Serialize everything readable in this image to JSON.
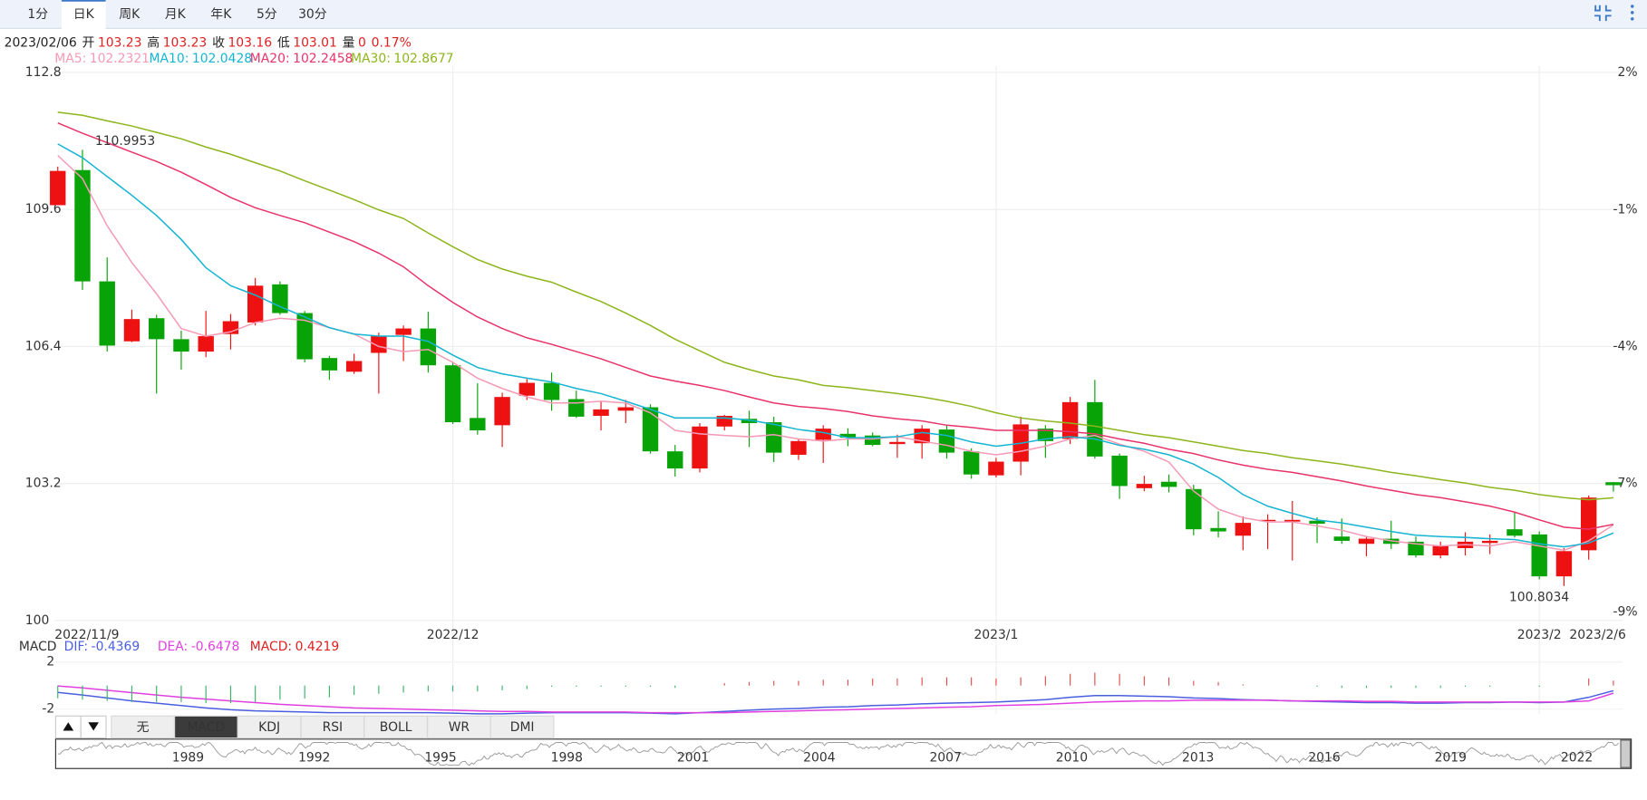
{
  "toolbar": {
    "tabs": [
      "1分",
      "日K",
      "周K",
      "月K",
      "年K",
      "5分",
      "30分"
    ],
    "active": 1
  },
  "header": {
    "date": "2023/02/06",
    "labels": [
      "开",
      "高",
      "收",
      "低",
      "量"
    ],
    "volume": 0,
    "change": "0.17%"
  },
  "chart_data": [
    {
      "type": "candlestick",
      "categories": [
        "2022/11/9",
        null,
        null,
        null,
        null,
        null,
        null,
        null,
        null,
        null,
        null,
        null,
        null,
        null,
        null,
        null,
        "2022/12",
        null,
        null,
        null,
        null,
        null,
        null,
        null,
        null,
        null,
        null,
        null,
        null,
        null,
        null,
        null,
        null,
        null,
        null,
        null,
        null,
        null,
        "2023/1",
        null,
        null,
        null,
        null,
        null,
        null,
        null,
        null,
        null,
        null,
        null,
        null,
        null,
        null,
        null,
        null,
        null,
        null,
        null,
        null,
        null,
        "2023/2",
        null,
        null,
        "2023/2/6"
      ],
      "open": [
        109.7,
        110.52,
        107.92,
        106.52,
        107.06,
        106.57,
        106.28,
        106.69,
        106.96,
        107.85,
        107.18,
        106.13,
        105.81,
        106.25,
        106.67,
        106.82,
        105.96,
        104.73,
        104.56,
        105.25,
        105.55,
        105.17,
        104.78,
        104.9,
        104.98,
        103.95,
        103.55,
        104.53,
        104.71,
        104.63,
        103.87,
        104.22,
        104.36,
        104.32,
        104.12,
        104.14,
        104.46,
        103.95,
        103.39,
        103.71,
        104.48,
        104.24,
        105.1,
        103.85,
        103.09,
        103.24,
        103.07,
        102.16,
        101.98,
        102.33,
        102.31,
        102.33,
        101.96,
        101.79,
        101.91,
        101.84,
        101.52,
        101.69,
        101.81,
        102.13,
        102.01,
        101.03,
        101.64,
        103.23
      ],
      "high": [
        110.6,
        110.9953,
        108.48,
        107.26,
        107.14,
        106.77,
        107.23,
        107.16,
        108.0,
        107.92,
        107.23,
        106.18,
        106.23,
        106.72,
        106.89,
        107.21,
        106.03,
        105.54,
        105.32,
        105.64,
        105.79,
        105.37,
        105.12,
        105.15,
        105.05,
        104.1,
        104.61,
        104.8,
        104.9,
        104.76,
        104.24,
        104.56,
        104.49,
        104.39,
        104.34,
        104.56,
        104.56,
        104.02,
        103.8,
        104.76,
        104.56,
        105.22,
        105.62,
        103.9,
        103.38,
        103.41,
        103.17,
        102.55,
        102.43,
        102.48,
        102.79,
        102.41,
        102.38,
        101.96,
        102.33,
        101.96,
        101.84,
        102.06,
        102.01,
        102.53,
        102.08,
        101.69,
        102.92,
        103.23
      ],
      "low": [
        109.7,
        107.72,
        106.28,
        106.5,
        105.3,
        105.86,
        106.15,
        106.33,
        106.89,
        107.14,
        106.03,
        105.62,
        105.76,
        105.3,
        106.06,
        105.79,
        104.59,
        104.34,
        104.05,
        105.15,
        104.9,
        104.73,
        104.44,
        104.61,
        103.9,
        103.36,
        103.46,
        104.44,
        104.05,
        103.7,
        103.75,
        103.68,
        104.07,
        104.07,
        103.8,
        103.78,
        103.78,
        103.31,
        103.34,
        103.39,
        103.8,
        104.12,
        103.78,
        102.84,
        103.02,
        102.99,
        101.99,
        101.94,
        101.64,
        101.67,
        101.4,
        101.81,
        101.79,
        101.5,
        101.67,
        101.47,
        101.45,
        101.52,
        101.55,
        101.94,
        100.96,
        100.8034,
        101.42,
        103.01
      ],
      "close": [
        110.5,
        107.92,
        106.42,
        107.04,
        106.57,
        106.28,
        106.64,
        106.99,
        107.82,
        107.18,
        106.1,
        105.84,
        106.06,
        106.64,
        106.82,
        105.96,
        104.63,
        104.44,
        105.22,
        105.55,
        105.15,
        104.76,
        104.93,
        104.98,
        103.95,
        103.55,
        104.53,
        104.78,
        104.61,
        103.92,
        104.19,
        104.48,
        104.27,
        104.1,
        104.17,
        104.48,
        103.92,
        103.41,
        103.71,
        104.58,
        104.19,
        105.1,
        103.83,
        103.14,
        103.19,
        103.12,
        102.13,
        102.08,
        102.28,
        102.35,
        102.35,
        102.26,
        101.86,
        101.91,
        101.79,
        101.52,
        101.74,
        101.84,
        101.86,
        101.98,
        101.03,
        101.62,
        102.87,
        103.16
      ],
      "up_color": "#ee1111",
      "down_color": "#07a307",
      "series": [
        {
          "name": "MA5:",
          "color": "#f59ab5",
          "values": [
            110.86,
            110.32,
            109.22,
            108.36,
            107.63,
            106.82,
            106.64,
            106.74,
            106.96,
            107.06,
            107.01,
            106.84,
            106.69,
            106.4,
            106.28,
            106.33,
            106.03,
            105.66,
            105.42,
            105.22,
            105.08,
            105.08,
            105.12,
            105.08,
            104.85,
            104.44,
            104.36,
            104.32,
            104.29,
            104.34,
            104.24,
            104.19,
            104.24,
            104.24,
            104.29,
            104.19,
            104.09,
            103.95,
            103.87,
            103.95,
            104.07,
            104.24,
            104.32,
            104.12,
            103.95,
            103.7,
            103.02,
            102.6,
            102.4,
            102.3,
            102.3,
            102.21,
            102.11,
            101.96,
            101.86,
            101.79,
            101.74,
            101.77,
            101.74,
            101.84,
            101.74,
            101.64,
            101.86,
            102.2321
          ]
        },
        {
          "name": "MA10:",
          "color": "#14b4d2",
          "values": [
            111.13,
            110.81,
            110.37,
            109.93,
            109.46,
            108.9,
            108.24,
            107.82,
            107.6,
            107.33,
            107.09,
            106.84,
            106.69,
            106.64,
            106.64,
            106.52,
            106.2,
            105.91,
            105.76,
            105.66,
            105.57,
            105.42,
            105.3,
            105.12,
            104.93,
            104.73,
            104.73,
            104.73,
            104.68,
            104.58,
            104.46,
            104.39,
            104.27,
            104.27,
            104.29,
            104.39,
            104.32,
            104.17,
            104.07,
            104.14,
            104.24,
            104.29,
            104.24,
            104.09,
            104.0,
            103.87,
            103.65,
            103.34,
            102.94,
            102.67,
            102.5,
            102.35,
            102.28,
            102.18,
            102.08,
            101.99,
            101.96,
            101.94,
            101.91,
            101.89,
            101.79,
            101.72,
            101.81,
            102.0428
          ]
        },
        {
          "name": "MA20:",
          "color": "#e8336b",
          "values": [
            111.62,
            111.38,
            111.16,
            110.94,
            110.72,
            110.47,
            110.18,
            109.88,
            109.64,
            109.46,
            109.29,
            109.07,
            108.85,
            108.58,
            108.26,
            107.82,
            107.43,
            107.09,
            106.82,
            106.6,
            106.45,
            106.28,
            106.11,
            105.91,
            105.71,
            105.59,
            105.49,
            105.37,
            105.22,
            105.08,
            105.0,
            104.95,
            104.88,
            104.78,
            104.71,
            104.66,
            104.56,
            104.51,
            104.44,
            104.44,
            104.44,
            104.41,
            104.36,
            104.24,
            104.14,
            104.0,
            103.9,
            103.75,
            103.63,
            103.53,
            103.46,
            103.36,
            103.26,
            103.14,
            103.04,
            102.94,
            102.87,
            102.77,
            102.67,
            102.53,
            102.35,
            102.18,
            102.13,
            102.2458
          ]
        },
        {
          "name": "MA30:",
          "color": "#8db51c",
          "values": [
            111.87,
            111.8,
            111.67,
            111.55,
            111.4,
            111.25,
            111.06,
            110.89,
            110.69,
            110.5,
            110.27,
            110.05,
            109.83,
            109.59,
            109.39,
            109.05,
            108.73,
            108.43,
            108.21,
            108.04,
            107.9,
            107.67,
            107.45,
            107.18,
            106.89,
            106.57,
            106.3,
            106.03,
            105.86,
            105.71,
            105.62,
            105.49,
            105.44,
            105.37,
            105.3,
            105.22,
            105.12,
            105.0,
            104.85,
            104.73,
            104.66,
            104.61,
            104.54,
            104.44,
            104.34,
            104.27,
            104.17,
            104.07,
            103.97,
            103.9,
            103.8,
            103.73,
            103.65,
            103.56,
            103.46,
            103.38,
            103.29,
            103.21,
            103.11,
            103.04,
            102.94,
            102.87,
            102.82,
            102.8677
          ]
        }
      ],
      "ylim": [
        100,
        112.8
      ],
      "yticks": [
        100,
        103.2,
        106.4,
        109.6,
        112.8
      ],
      "y2lim": [
        -9.58,
        2
      ],
      "y2ticks": [
        {
          "value": 2,
          "label": "2%"
        },
        {
          "value": -0.9,
          "label": "-1%"
        },
        {
          "value": -3.79,
          "label": "-4%"
        },
        {
          "value": -6.68,
          "label": "-7%"
        },
        {
          "value": -9.4,
          "label": "-9%"
        }
      ],
      "grid": true
    },
    {
      "type": "macd",
      "title": "MACD",
      "series": [
        {
          "name": "DIF:",
          "color": "#4a5fe0",
          "style": "line",
          "values": [
            -0.58,
            -0.8,
            -1.05,
            -1.3,
            -1.5,
            -1.7,
            -1.9,
            -2.05,
            -2.15,
            -2.2,
            -2.25,
            -2.3,
            -2.3,
            -2.3,
            -2.3,
            -2.3,
            -2.35,
            -2.4,
            -2.4,
            -2.35,
            -2.3,
            -2.3,
            -2.3,
            -2.3,
            -2.35,
            -2.4,
            -2.3,
            -2.2,
            -2.1,
            -2.0,
            -1.95,
            -1.85,
            -1.8,
            -1.7,
            -1.65,
            -1.55,
            -1.5,
            -1.45,
            -1.4,
            -1.3,
            -1.2,
            -1.0,
            -0.85,
            -0.85,
            -0.9,
            -0.95,
            -1.05,
            -1.1,
            -1.2,
            -1.25,
            -1.3,
            -1.35,
            -1.4,
            -1.45,
            -1.45,
            -1.5,
            -1.5,
            -1.45,
            -1.45,
            -1.4,
            -1.45,
            -1.4,
            -1.0,
            -0.4369
          ]
        },
        {
          "name": "DEA:",
          "color": "#e040e0",
          "style": "line",
          "values": [
            -0.04,
            -0.2,
            -0.4,
            -0.6,
            -0.8,
            -1.0,
            -1.15,
            -1.3,
            -1.45,
            -1.6,
            -1.7,
            -1.8,
            -1.9,
            -1.95,
            -2.0,
            -2.05,
            -2.1,
            -2.15,
            -2.2,
            -2.2,
            -2.25,
            -2.25,
            -2.25,
            -2.25,
            -2.3,
            -2.3,
            -2.3,
            -2.3,
            -2.25,
            -2.2,
            -2.15,
            -2.1,
            -2.05,
            -2.0,
            -1.95,
            -1.9,
            -1.85,
            -1.8,
            -1.7,
            -1.65,
            -1.6,
            -1.5,
            -1.4,
            -1.35,
            -1.3,
            -1.3,
            -1.25,
            -1.25,
            -1.25,
            -1.25,
            -1.3,
            -1.3,
            -1.3,
            -1.35,
            -1.35,
            -1.4,
            -1.4,
            -1.4,
            -1.4,
            -1.4,
            -1.4,
            -1.4,
            -1.3,
            -0.6478
          ]
        },
        {
          "name": "MACD:",
          "color": "#e02020",
          "style": "bar",
          "values": [
            -1.08,
            -1.2,
            -1.3,
            -1.4,
            -1.4,
            -1.4,
            -1.5,
            -1.5,
            -1.4,
            -1.2,
            -1.1,
            -1.0,
            -0.8,
            -0.7,
            -0.6,
            -0.5,
            -0.5,
            -0.5,
            -0.4,
            -0.3,
            -0.1,
            -0.1,
            -0.1,
            -0.1,
            -0.1,
            -0.2,
            0,
            0.2,
            0.3,
            0.4,
            0.4,
            0.5,
            0.5,
            0.6,
            0.6,
            0.7,
            0.7,
            0.7,
            0.6,
            0.7,
            0.8,
            1.0,
            1.1,
            1.0,
            0.8,
            0.7,
            0.4,
            0.3,
            0.1,
            0,
            0,
            -0.1,
            -0.2,
            -0.2,
            -0.2,
            -0.2,
            -0.2,
            -0.1,
            -0.1,
            0,
            -0.1,
            0,
            0.6,
            0.4219
          ]
        }
      ],
      "up_color": "#e05050",
      "down_color": "#3cb36a",
      "ylim": [
        -2.5,
        2.5
      ],
      "yticks": [
        -2,
        2
      ]
    }
  ],
  "indicator_tabs": {
    "tabs": [
      "无",
      "MACD",
      "KDJ",
      "RSI",
      "BOLL",
      "WR",
      "DMI"
    ],
    "active": 1
  },
  "navigator": {
    "years": [
      "1989",
      "1992",
      "1995",
      "1998",
      "2001",
      "2004",
      "2007",
      "2010",
      "2013",
      "2016",
      "2019",
      "2022"
    ]
  }
}
